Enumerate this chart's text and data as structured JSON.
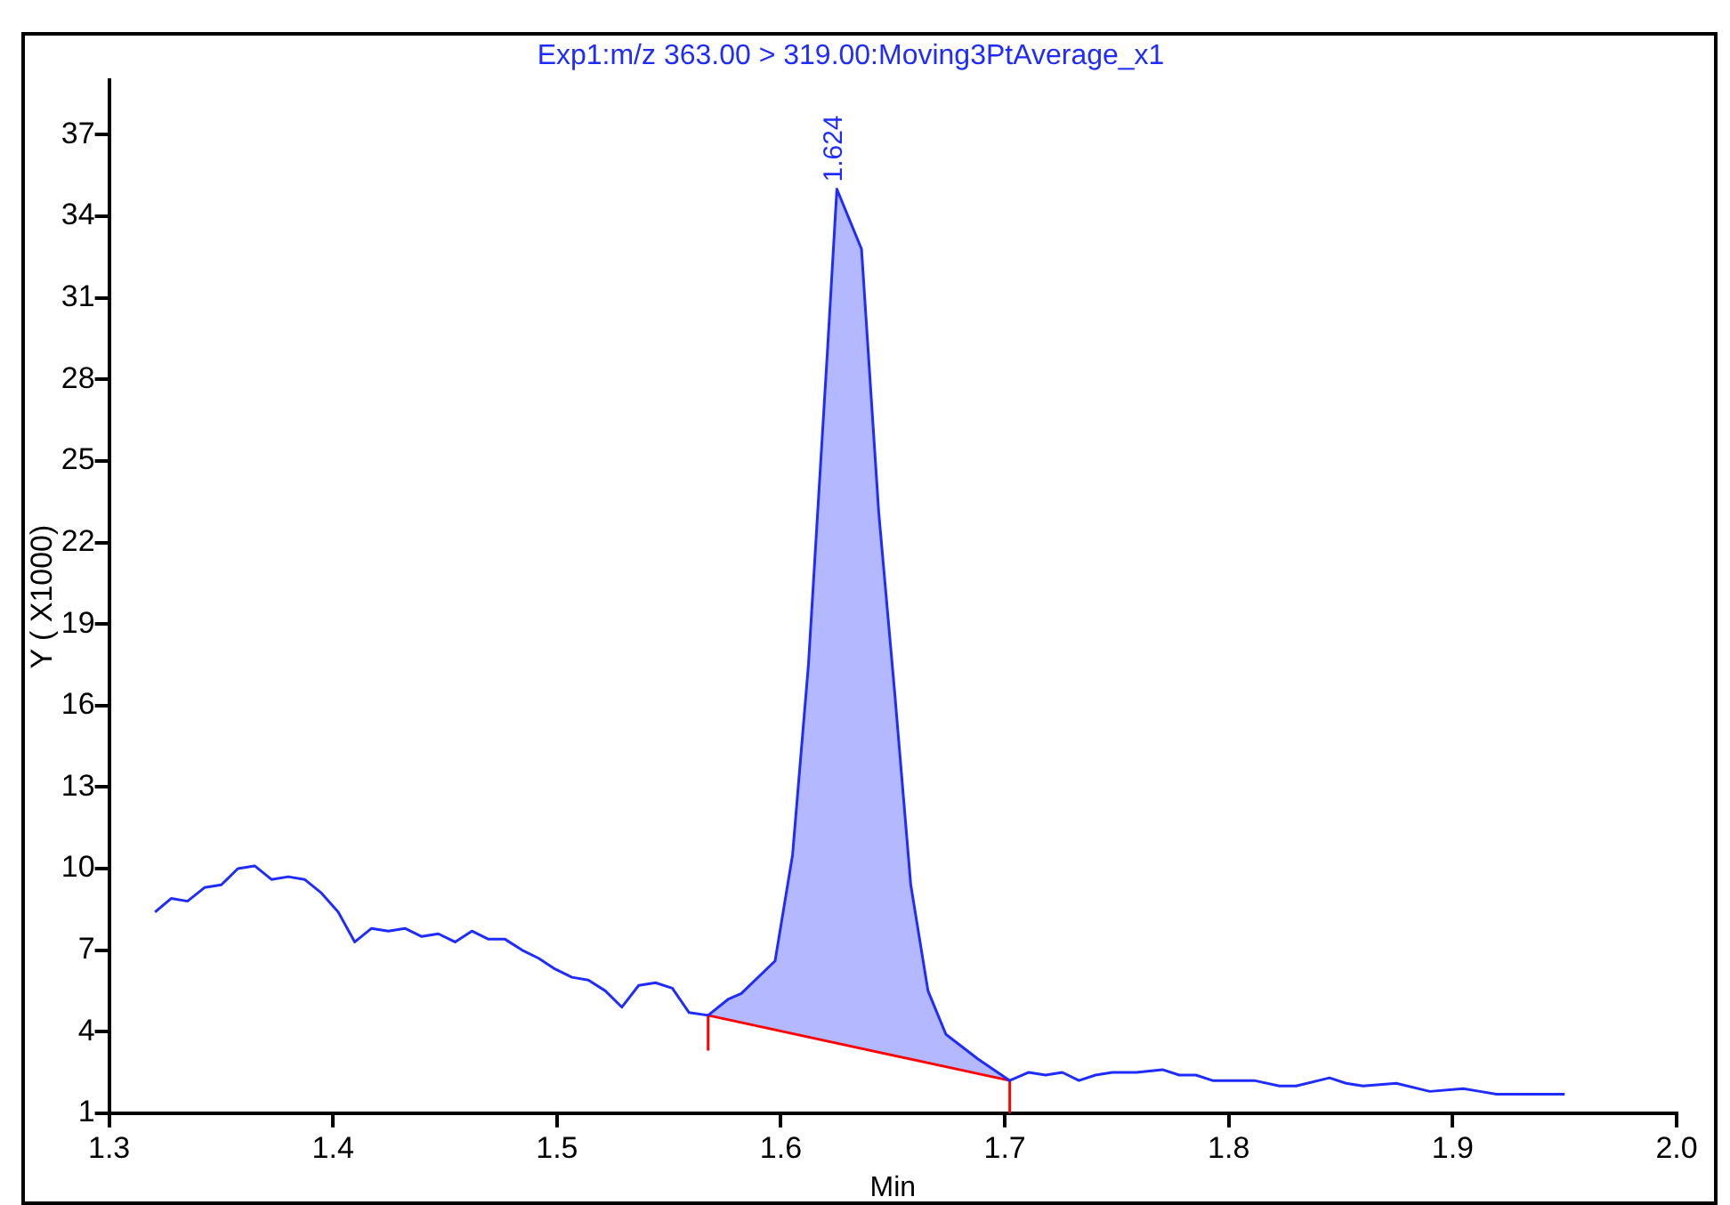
{
  "chart_data": {
    "type": "line",
    "title": "Exp1:m/z 363.00 > 319.00:Moving3PtAverage_x1",
    "xlabel": "Min",
    "ylabel": "Y ( X1000)",
    "xlim": [
      1.3,
      2.0
    ],
    "xticks": [
      {
        "value": 1.3,
        "label": "1.3"
      },
      {
        "value": 1.4,
        "label": "1.4"
      },
      {
        "value": 1.5,
        "label": "1.5"
      },
      {
        "value": 1.6,
        "label": "1.6"
      },
      {
        "value": 1.7,
        "label": "1.7"
      },
      {
        "value": 1.8,
        "label": "1.8"
      },
      {
        "value": 1.9,
        "label": "1.9"
      },
      {
        "value": 2.0,
        "label": "2.0"
      }
    ],
    "ylim": [
      1,
      39
    ],
    "yticks": [
      1,
      4,
      7,
      10,
      13,
      16,
      19,
      22,
      25,
      28,
      31,
      34,
      37
    ],
    "grid": false,
    "legend": false,
    "marker": "none",
    "line_style": "solid",
    "annotations": [
      {
        "text": "1.624",
        "x": 1.624,
        "y": 35
      }
    ],
    "series": [
      {
        "color": "#1f2cff",
        "x": [
          1.3205,
          1.3277,
          1.335,
          1.3426,
          1.3501,
          1.3575,
          1.365,
          1.3725,
          1.38,
          1.3873,
          1.3948,
          1.4023,
          1.4097,
          1.4172,
          1.4247,
          1.4321,
          1.4396,
          1.447,
          1.4545,
          1.462,
          1.4694,
          1.4768,
          1.4844,
          1.4918,
          1.4992,
          1.5067,
          1.514,
          1.5216,
          1.529,
          1.5365,
          1.544,
          1.5515,
          1.559,
          1.5675,
          1.5766,
          1.5823,
          1.5974,
          1.6052,
          1.6123,
          1.6209,
          1.625,
          1.636,
          1.6437,
          1.6509,
          1.658,
          1.6657,
          1.6737,
          1.6879,
          1.7022,
          1.7107,
          1.7182,
          1.7257,
          1.7331,
          1.7405,
          1.748,
          1.7587,
          1.7704,
          1.7779,
          1.7853,
          1.7928,
          1.8003,
          1.8114,
          1.8226,
          1.8301,
          1.845,
          1.8524,
          1.8599,
          1.8748,
          1.8898,
          1.9047,
          1.9122,
          1.9196,
          1.9348,
          1.95
        ],
        "lower": [
          null,
          null,
          null,
          null,
          null,
          null,
          null,
          null,
          null,
          null,
          null,
          null,
          null,
          null,
          null,
          null,
          null,
          null,
          null,
          null,
          null,
          null,
          null,
          null,
          null,
          null,
          null,
          null,
          null,
          null,
          null,
          null,
          null,
          4.6,
          4.4,
          4.3,
          4.1,
          3.9,
          3.8,
          3.6,
          3.6,
          3.4,
          3.2,
          3.1,
          3.0,
          2.9,
          2.7,
          2.5,
          2.2,
          null,
          null,
          null,
          null,
          null,
          null,
          null,
          null,
          null,
          null,
          null,
          null,
          null,
          null,
          null,
          null,
          null,
          null,
          null,
          null,
          null,
          null,
          null,
          null,
          null
        ],
        "upper": [
          null,
          null,
          null,
          null,
          null,
          null,
          null,
          null,
          null,
          null,
          null,
          null,
          null,
          null,
          null,
          null,
          null,
          null,
          null,
          null,
          null,
          null,
          null,
          null,
          null,
          null,
          null,
          null,
          null,
          null,
          null,
          null,
          null,
          4.6,
          5.2,
          5.4,
          6.6,
          10.5,
          17.5,
          29.2,
          35.0,
          32.8,
          23.1,
          16.4,
          9.4,
          5.5,
          3.9,
          3.0,
          2.2,
          null,
          null,
          null,
          null,
          null,
          null,
          null,
          null,
          null,
          null,
          null,
          null,
          null,
          null,
          null,
          null,
          null,
          null,
          null,
          null,
          null,
          null,
          null,
          null,
          null
        ],
        "values": [
          8.4,
          8.9,
          8.8,
          9.3,
          9.4,
          10.0,
          10.1,
          9.6,
          9.7,
          9.6,
          9.1,
          8.4,
          7.3,
          7.8,
          7.7,
          7.8,
          7.5,
          7.6,
          7.3,
          7.7,
          7.4,
          7.4,
          7.0,
          6.7,
          6.3,
          6.0,
          5.9,
          5.5,
          4.9,
          5.7,
          5.8,
          5.6,
          4.7,
          4.6,
          5.2,
          5.4,
          6.6,
          10.5,
          17.5,
          29.2,
          35.0,
          32.8,
          23.1,
          16.4,
          9.4,
          5.5,
          3.9,
          3.0,
          2.2,
          2.5,
          2.4,
          2.5,
          2.2,
          2.4,
          2.5,
          2.5,
          2.6,
          2.4,
          2.4,
          2.2,
          2.2,
          2.2,
          2.0,
          2.0,
          2.3,
          2.1,
          2.0,
          2.1,
          1.8,
          1.9,
          1.8,
          1.7,
          1.7,
          1.7
        ]
      },
      {
        "type": "line",
        "color": "#ff0000",
        "x": [
          1.5675,
          1.5675,
          1.7022,
          1.7022
        ],
        "values": [
          3.3,
          4.6,
          2.2,
          1.0
        ]
      }
    ]
  }
}
